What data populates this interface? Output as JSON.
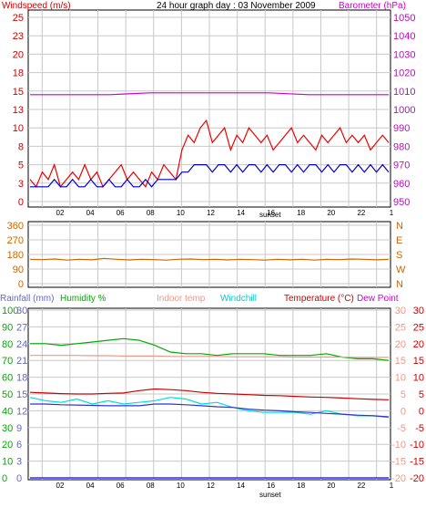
{
  "chart_data": [
    {
      "type": "line",
      "title": "24 hour graph day : 03 November 2009",
      "left_axis_label": "Windspeed (m/s)",
      "right_axis_label": "Barometer (hPa)",
      "left_ticks": [
        "0",
        "3",
        "5",
        "8",
        "10",
        "13",
        "15",
        "18",
        "20",
        "23",
        "25"
      ],
      "left_ylim": [
        0,
        25
      ],
      "right_ticks": [
        "950",
        "960",
        "970",
        "980",
        "990",
        "1000",
        "1010",
        "1020",
        "1030",
        "1040",
        "1050"
      ],
      "right_ylim": [
        950,
        1050
      ],
      "x_ticks": [
        "02",
        "04",
        "06",
        "08",
        "10",
        "12",
        "14",
        "16",
        "18",
        "20",
        "22",
        "1"
      ],
      "x_marker": "sunset",
      "grid": true,
      "series": [
        {
          "name": "Windspeed (m/s)",
          "role": "gust",
          "color": "#ee0000",
          "values": [
            3,
            2,
            4,
            3,
            5,
            2,
            3,
            4,
            3,
            5,
            3,
            4,
            2,
            3,
            4,
            5,
            3,
            4,
            3,
            2,
            4,
            3,
            5,
            4,
            3,
            7,
            9,
            8,
            10,
            11,
            8,
            9,
            10,
            7,
            9,
            8,
            10,
            9,
            8,
            9,
            7,
            8,
            9,
            10,
            8,
            9,
            8,
            7,
            9,
            8,
            9,
            10,
            8,
            9,
            8,
            9,
            7,
            8,
            9,
            8
          ]
        },
        {
          "name": "Windspeed (m/s)",
          "role": "average",
          "color": "#0000cc",
          "values": [
            2,
            2,
            2,
            2,
            3,
            2,
            2,
            3,
            2,
            2,
            3,
            2,
            2,
            3,
            2,
            2,
            3,
            2,
            2,
            3,
            2,
            3,
            3,
            3,
            3,
            4,
            4,
            5,
            5,
            5,
            4,
            5,
            5,
            4,
            5,
            4,
            5,
            5,
            4,
            5,
            4,
            5,
            5,
            4,
            5,
            4,
            5,
            5,
            4,
            5,
            4,
            5,
            5,
            4,
            5,
            4,
            5,
            4,
            5,
            4
          ]
        },
        {
          "name": "Barometer (hPa)",
          "color": "#cc00cc",
          "values": [
            1008,
            1008,
            1008,
            1009,
            1009,
            1009,
            1009,
            1008,
            1008,
            1008
          ]
        }
      ]
    },
    {
      "type": "line",
      "left_ticks": [
        "0",
        "90",
        "180",
        "270",
        "360"
      ],
      "left_ylim": [
        0,
        360
      ],
      "right_labels": [
        "N",
        "W",
        "S",
        "E",
        "N"
      ],
      "series": [
        {
          "name": "Wind direction",
          "color": "#cc6600",
          "values": [
            150,
            148,
            152,
            145,
            150,
            147,
            155,
            150,
            146,
            150,
            148,
            145,
            150,
            152,
            148,
            150,
            146,
            150,
            148,
            145,
            150,
            147,
            150,
            145,
            150,
            148,
            152,
            150,
            147,
            150
          ]
        }
      ]
    },
    {
      "type": "line",
      "left_label_rainfall": "Rainfall (mm)",
      "left_label_humidity": "Humidity %",
      "indoor_label": "Indoor temp",
      "windchill_label": "Windchill",
      "temperature_label": "Temperature (°C)",
      "dewpoint_label": "Dew Point",
      "rain_ticks": [
        "0",
        "3",
        "6",
        "9",
        "12",
        "15",
        "18",
        "21",
        "24",
        "27",
        "30"
      ],
      "humidity_ticks": [
        "0",
        "10",
        "20",
        "30",
        "40",
        "50",
        "60",
        "70",
        "80",
        "90",
        "100"
      ],
      "temp_ticks_left": [
        "-20",
        "-15",
        "-10",
        "-5",
        "0",
        "5",
        "10",
        "15",
        "20",
        "25",
        "30"
      ],
      "temp_ticks_right": [
        "-20",
        "-15",
        "-10",
        "-5",
        "0",
        "5",
        "10",
        "15",
        "20",
        "25",
        "30"
      ],
      "temp_ylim": [
        -20,
        30
      ],
      "x_ticks": [
        "02",
        "04",
        "06",
        "08",
        "10",
        "12",
        "14",
        "16",
        "18",
        "20",
        "22",
        "1"
      ],
      "x_marker": "sunset",
      "series": [
        {
          "name": "Humidity %",
          "color": "#00aa00",
          "values": [
            80,
            80,
            79,
            80,
            81,
            82,
            83,
            82,
            79,
            75,
            74,
            74,
            73,
            74,
            74,
            74,
            73,
            73,
            73,
            74,
            72,
            71,
            71,
            70
          ]
        },
        {
          "name": "Indoor temp",
          "color": "#ee9988",
          "values": [
            16.5,
            16.5,
            16.5,
            16.5,
            16.4,
            16.4,
            16.3,
            16.3,
            16.3,
            16.2,
            16.2,
            16.2,
            16.2,
            16.1,
            16.1,
            16.1,
            16.1,
            16.0,
            16.0,
            16.0,
            16.0,
            15.9,
            15.9,
            15.9
          ]
        },
        {
          "name": "Temperature (°C)",
          "color": "#cc0000",
          "values": [
            5.5,
            5.3,
            5.1,
            5.0,
            5.0,
            5.2,
            5.3,
            6.0,
            6.5,
            6.3,
            6.0,
            5.5,
            5.2,
            5.0,
            4.8,
            4.6,
            4.5,
            4.3,
            4.1,
            4.0,
            3.8,
            3.6,
            3.4,
            3.3
          ]
        },
        {
          "name": "Windchill",
          "color": "#00dddd",
          "values": [
            4,
            3,
            2.5,
            3.5,
            2,
            3,
            2,
            2.5,
            3,
            4,
            3.5,
            2,
            2.5,
            1,
            0,
            -0.5,
            -0.5,
            -0.5,
            -1,
            0,
            -1,
            -1.5,
            -1.5,
            -2
          ]
        },
        {
          "name": "Dew Point",
          "color": "#3333cc",
          "values": [
            2.0,
            2.0,
            1.8,
            1.7,
            1.6,
            1.5,
            1.5,
            1.5,
            2.0,
            2.0,
            1.8,
            1.5,
            1.2,
            1.0,
            0.5,
            0.2,
            0.0,
            -0.3,
            -0.5,
            -0.8,
            -1.0,
            -1.3,
            -1.5,
            -1.8
          ]
        },
        {
          "name": "Rainfall (mm)",
          "color": "#0000ff",
          "values": [
            0,
            0,
            0,
            0,
            0,
            0,
            0,
            0,
            0,
            0,
            0,
            0,
            0,
            0,
            0,
            0,
            0,
            0,
            0,
            0,
            0,
            0,
            0,
            0
          ]
        }
      ]
    }
  ]
}
